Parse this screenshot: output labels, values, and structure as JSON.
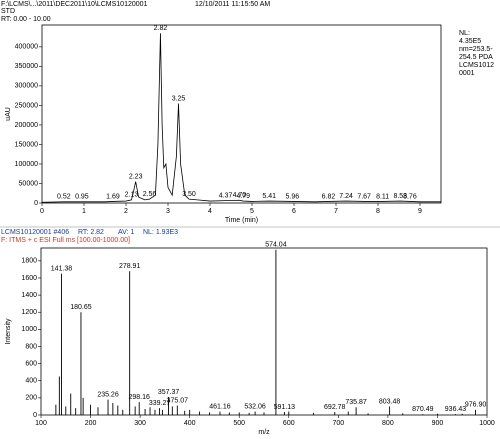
{
  "header": {
    "file": "F:\\LCMS\\...\\2011\\DEC2011\\10\\LCMS10120001",
    "date": "12/10/2011 11:15:50 AM",
    "sample": "STD",
    "range": "RT: 0.00 - 10.00",
    "nl_info": [
      "NL:",
      "4.35E5",
      "nm=253.5-",
      "254.5 PDA",
      "LCMS1012",
      "0001"
    ]
  },
  "spectrum_header": {
    "scan": "LCMS10120001 #406",
    "rt": "RT: 2.82",
    "av": "AV: 1",
    "nl": "NL: 1.93E3",
    "filter": "F:  ITMS + c ESI Full ms [100.00-1000.00]"
  },
  "chart_data": [
    {
      "type": "line",
      "x_label": "Time (min)",
      "y_label": "uAU",
      "color": "#000000",
      "x": [
        0,
        0.52,
        0.95,
        1.5,
        1.69,
        2.0,
        2.13,
        2.18,
        2.23,
        2.3,
        2.45,
        2.56,
        2.7,
        2.76,
        2.82,
        2.86,
        2.9,
        2.95,
        3.0,
        3.1,
        3.2,
        3.25,
        3.3,
        3.4,
        3.5,
        3.7,
        4.0,
        4.37,
        4.7,
        4.79,
        5.0,
        5.41,
        5.96,
        6.5,
        6.82,
        7.24,
        7.67,
        8.11,
        8.53,
        8.76,
        9.0,
        9.5
      ],
      "values": [
        2000,
        3000,
        3000,
        3000,
        4000,
        5000,
        8000,
        30000,
        55000,
        15000,
        8000,
        10000,
        20000,
        150000,
        435000,
        200000,
        90000,
        100000,
        40000,
        20000,
        120000,
        255000,
        100000,
        20000,
        10000,
        8000,
        5000,
        6000,
        7000,
        5000,
        4000,
        5000,
        4000,
        3000,
        4000,
        5000,
        4000,
        4000,
        5000,
        4000,
        3000,
        3000
      ],
      "peaks": [
        {
          "value": 0.52,
          "label": "0.52"
        },
        {
          "value": 0.95,
          "label": "0.95"
        },
        {
          "value": 1.69,
          "label": "1.69"
        },
        {
          "value": 2.13,
          "label": "2.13"
        },
        {
          "value": 2.23,
          "label": "2.23"
        },
        {
          "value": 2.56,
          "label": "2.56"
        },
        {
          "value": 2.82,
          "label": "2.82"
        },
        {
          "value": 3.25,
          "label": "3.25"
        },
        {
          "value": 3.5,
          "label": "3.50"
        },
        {
          "value": 4.37,
          "label": "4.37"
        },
        {
          "value": 4.7,
          "label": "4.70"
        },
        {
          "value": 4.79,
          "label": "4.79"
        },
        {
          "value": 5.41,
          "label": "5.41"
        },
        {
          "value": 5.96,
          "label": "5.96"
        },
        {
          "value": 6.82,
          "label": "6.82"
        },
        {
          "value": 7.24,
          "label": "7.24"
        },
        {
          "value": 7.67,
          "label": "7.67"
        },
        {
          "value": 8.11,
          "label": "8.11"
        },
        {
          "value": 8.53,
          "label": "8.53"
        },
        {
          "value": 8.76,
          "label": "8.76"
        }
      ],
      "xlim": [
        0,
        9.5
      ],
      "xticks": [
        0,
        1,
        2,
        3,
        4,
        5,
        6,
        7,
        8,
        9
      ],
      "ylim": [
        0,
        456000
      ],
      "yticks": [
        0,
        50000,
        100000,
        150000,
        200000,
        250000,
        300000,
        350000,
        400000
      ]
    },
    {
      "type": "bar",
      "x_label": "m/z",
      "y_label": "Intensity",
      "color": "#000000",
      "x": [
        130,
        137,
        141.38,
        150,
        160,
        170,
        180.65,
        185,
        200,
        215,
        235.26,
        245,
        255,
        265,
        278.91,
        290,
        298.16,
        310,
        320,
        330,
        339.27,
        345,
        357.37,
        365,
        375.07,
        390,
        400,
        420,
        440,
        461.16,
        480,
        500,
        520,
        532.06,
        550,
        574.04,
        591.13,
        600,
        650,
        692.78,
        720,
        735.87,
        760,
        803.48,
        830,
        870.49,
        900,
        936.43,
        950,
        976.9
      ],
      "values": [
        120,
        450,
        1650,
        100,
        250,
        80,
        1200,
        200,
        120,
        90,
        180,
        140,
        110,
        60,
        1680,
        100,
        150,
        70,
        90,
        60,
        80,
        60,
        210,
        100,
        110,
        50,
        60,
        40,
        30,
        40,
        30,
        30,
        25,
        40,
        30,
        1930,
        35,
        40,
        25,
        35,
        40,
        90,
        20,
        100,
        20,
        10,
        15,
        10,
        15,
        60
      ],
      "x_labels": [
        null,
        null,
        "141.38",
        null,
        null,
        null,
        "180.65",
        null,
        null,
        null,
        "235.26",
        null,
        null,
        null,
        "278.91",
        null,
        "298.16",
        null,
        null,
        null,
        "339.27",
        null,
        "357.37",
        null,
        "375.07",
        null,
        null,
        null,
        null,
        "461.16",
        null,
        null,
        null,
        "532.06",
        null,
        "574.04",
        "591.13",
        null,
        null,
        "692.78",
        null,
        "735.87",
        null,
        "803.48",
        null,
        "870.49",
        null,
        "936.43",
        null,
        "976.90"
      ],
      "xlim": [
        100,
        1000
      ],
      "xticks": [
        100,
        200,
        300,
        400,
        500,
        600,
        700,
        800,
        900,
        1000
      ],
      "ylim": [
        0,
        1950
      ],
      "yticks": [
        0,
        200,
        400,
        600,
        800,
        1000,
        1200,
        1400,
        1600,
        1800
      ]
    }
  ]
}
